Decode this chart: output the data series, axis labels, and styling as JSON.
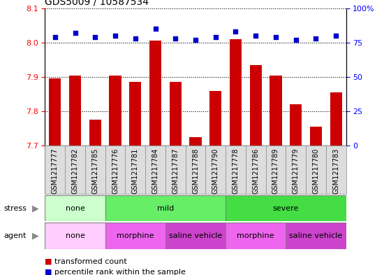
{
  "title": "GDS5009 / 10587534",
  "samples": [
    "GSM1217777",
    "GSM1217782",
    "GSM1217785",
    "GSM1217776",
    "GSM1217781",
    "GSM1217784",
    "GSM1217787",
    "GSM1217788",
    "GSM1217790",
    "GSM1217778",
    "GSM1217786",
    "GSM1217789",
    "GSM1217779",
    "GSM1217780",
    "GSM1217783"
  ],
  "transformed_count": [
    7.895,
    7.905,
    7.775,
    7.905,
    7.885,
    8.005,
    7.885,
    7.725,
    7.86,
    8.01,
    7.935,
    7.905,
    7.82,
    7.755,
    7.855
  ],
  "percentile_rank": [
    79,
    82,
    79,
    80,
    78,
    85,
    78,
    77,
    79,
    83,
    80,
    79,
    77,
    78,
    80
  ],
  "ylim_left": [
    7.7,
    8.1
  ],
  "ylim_right": [
    0,
    100
  ],
  "yticks_left": [
    7.7,
    7.8,
    7.9,
    8.0,
    8.1
  ],
  "yticks_right": [
    0,
    25,
    50,
    75,
    100
  ],
  "ytick_labels_right": [
    "0",
    "25",
    "50",
    "75",
    "100%"
  ],
  "bar_color": "#cc0000",
  "dot_color": "#0000cc",
  "stress_groups": [
    {
      "label": "none",
      "start": 0,
      "end": 3,
      "color": "#ccffcc"
    },
    {
      "label": "mild",
      "start": 3,
      "end": 9,
      "color": "#66ee66"
    },
    {
      "label": "severe",
      "start": 9,
      "end": 15,
      "color": "#44dd44"
    }
  ],
  "agent_groups": [
    {
      "label": "none",
      "start": 0,
      "end": 3,
      "color": "#ffccff"
    },
    {
      "label": "morphine",
      "start": 3,
      "end": 6,
      "color": "#ee66ee"
    },
    {
      "label": "saline vehicle",
      "start": 6,
      "end": 9,
      "color": "#cc44cc"
    },
    {
      "label": "morphine",
      "start": 9,
      "end": 12,
      "color": "#ee66ee"
    },
    {
      "label": "saline vehicle",
      "start": 12,
      "end": 15,
      "color": "#cc44cc"
    }
  ],
  "legend_items": [
    {
      "label": "transformed count",
      "color": "#cc0000"
    },
    {
      "label": "percentile rank within the sample",
      "color": "#0000cc"
    }
  ],
  "n": 15,
  "plot_bg": "#ffffff",
  "xtick_bg": "#dddddd",
  "label_fontsize": 7,
  "group_fontsize": 8
}
